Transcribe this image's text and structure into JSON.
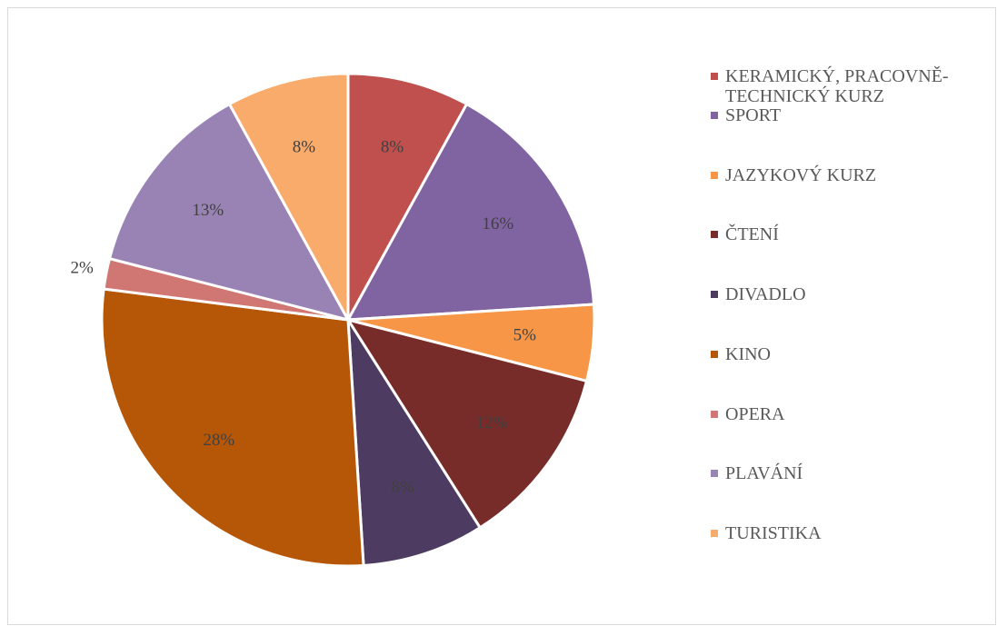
{
  "chart_data": {
    "type": "pie",
    "categories": [
      "KERAMICKÝ, PRACOVNĚ-TECHNICKÝ KURZ",
      "SPORT",
      "JAZYKOVÝ KURZ",
      "ČTENÍ",
      "DIVADLO",
      "KINO",
      "OPERA",
      "PLAVÁNÍ",
      "TURISTIKA"
    ],
    "values": [
      8,
      16,
      5,
      12,
      8,
      28,
      2,
      13,
      8
    ],
    "value_labels": [
      "8%",
      "16%",
      "5%",
      "12%",
      "8%",
      "28%",
      "2%",
      "13%",
      "8%"
    ],
    "colors": [
      "#c0504d",
      "#8064a2",
      "#f79646",
      "#772c2a",
      "#4d3b62",
      "#b65708",
      "#d07673",
      "#9983b5",
      "#f9ab6b"
    ],
    "legend": "right"
  }
}
